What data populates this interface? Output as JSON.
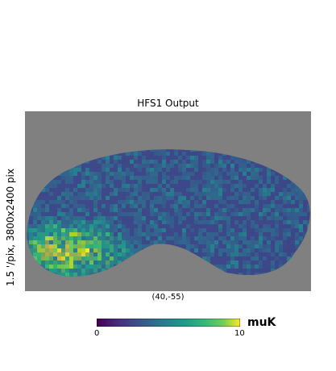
{
  "title": "HFS1 Output",
  "ylabel": "1.5 '/pix,   3800x2400 pix",
  "center_label": "(40,-55)",
  "colorbar": {
    "min_label": "0",
    "max_label": "10",
    "unit": "muK",
    "colormap": "viridis"
  },
  "colors": {
    "background_mask": "#808080"
  },
  "chart_data": {
    "type": "heatmap",
    "title": "HFS1 Output",
    "projection": "gnomonic sky patch",
    "center": [
      40,
      -55
    ],
    "pixel_scale_arcmin": 1.5,
    "map_size_pix": [
      3800,
      2400
    ],
    "value_range": [
      0,
      10
    ],
    "unit": "muK",
    "colormap": "viridis",
    "masked_color": "#808080",
    "description_values": {
      "typical_level": 3,
      "high_region_level": 8
    }
  }
}
